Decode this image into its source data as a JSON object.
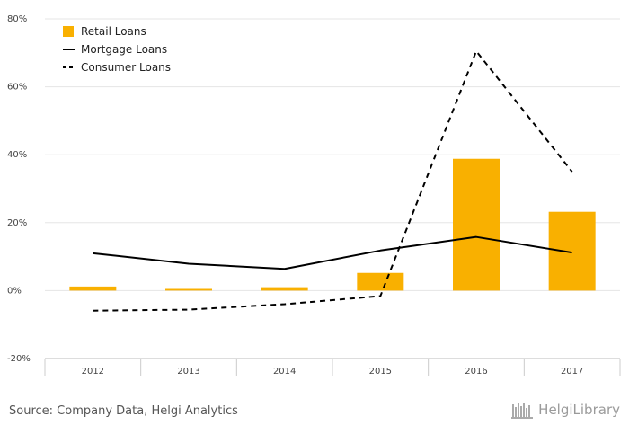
{
  "chart_data": {
    "type": "bar",
    "categories": [
      "2012",
      "2013",
      "2014",
      "2015",
      "2016",
      "2017"
    ],
    "series": [
      {
        "name": "Retail Loans",
        "kind": "bar",
        "values": [
          1.2,
          0.5,
          1.0,
          5.2,
          38.8,
          23.2
        ]
      },
      {
        "name": "Mortgage Loans",
        "kind": "line",
        "values": [
          11.0,
          7.9,
          6.4,
          11.8,
          15.8,
          11.2
        ]
      },
      {
        "name": "Consumer Loans",
        "kind": "line-dashed",
        "values": [
          -5.9,
          -5.6,
          -4.0,
          -1.6,
          70.5,
          35.0
        ]
      }
    ],
    "ylim": [
      -20,
      80
    ],
    "yticks": [
      -20,
      0,
      20,
      40,
      60,
      80
    ],
    "ytick_labels": [
      "-20%",
      "0%",
      "20%",
      "40%",
      "60%",
      "80%"
    ],
    "legend_position": "top-left",
    "grid": true
  },
  "colors": {
    "bar": "#F9B000",
    "line": "#000000",
    "grid": "#e5e5e5"
  },
  "footer": {
    "source": "Source: Company Data, Helgi Analytics",
    "brand": "HelgiLibrary",
    "brand_icon": "library-icon"
  }
}
